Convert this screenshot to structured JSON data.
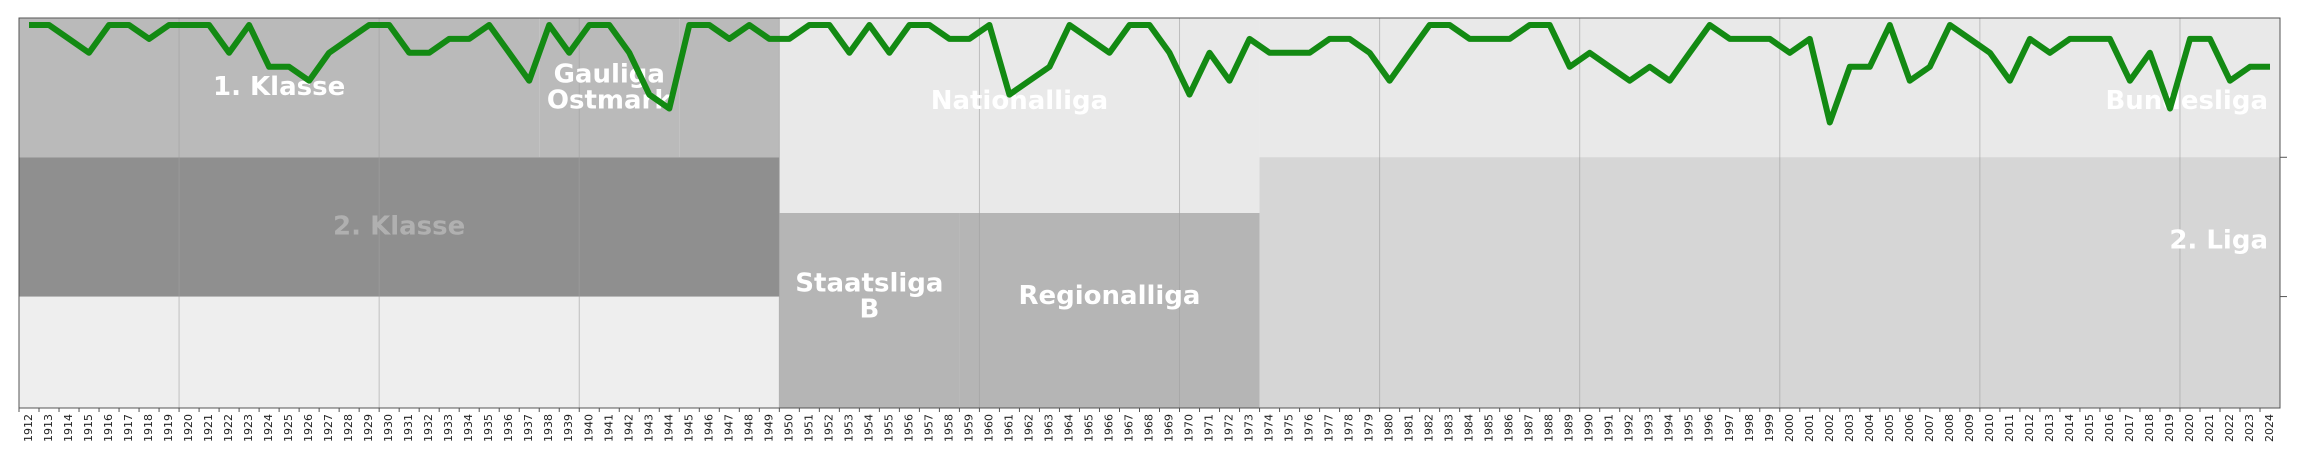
{
  "chart_data": {
    "type": "line",
    "categories": [
      "1912",
      "1913",
      "1914",
      "1915",
      "1916",
      "1917",
      "1918",
      "1919",
      "1920",
      "1921",
      "1922",
      "1923",
      "1924",
      "1925",
      "1926",
      "1927",
      "1928",
      "1929",
      "1930",
      "1931",
      "1932",
      "1933",
      "1934",
      "1935",
      "1936",
      "1937",
      "1938",
      "1939",
      "1940",
      "1941",
      "1942",
      "1943",
      "1944",
      "1945",
      "1946",
      "1947",
      "1948",
      "1949",
      "1950",
      "1951",
      "1952",
      "1953",
      "1954",
      "1955",
      "1956",
      "1957",
      "1958",
      "1959",
      "1960",
      "1961",
      "1962",
      "1963",
      "1964",
      "1965",
      "1966",
      "1967",
      "1968",
      "1969",
      "1970",
      "1971",
      "1972",
      "1973",
      "1974",
      "1975",
      "1976",
      "1977",
      "1978",
      "1979",
      "1980",
      "1981",
      "1982",
      "1983",
      "1984",
      "1985",
      "1986",
      "1987",
      "1988",
      "1989",
      "1990",
      "1991",
      "1992",
      "1993",
      "1994",
      "1995",
      "1996",
      "1997",
      "1998",
      "1999",
      "2000",
      "2001",
      "2002",
      "2003",
      "2004",
      "2005",
      "2006",
      "2007",
      "2008",
      "2009",
      "2010",
      "2011",
      "2012",
      "2013",
      "2014",
      "2015",
      "2016",
      "2017",
      "2018",
      "2019",
      "2020",
      "2021",
      "2022",
      "2023",
      "2024"
    ],
    "values": [
      1,
      1,
      2,
      3,
      1,
      1,
      2,
      1,
      1,
      1,
      3,
      1,
      4,
      4,
      5,
      3,
      2,
      1,
      1,
      3,
      3,
      2,
      2,
      1,
      3,
      5,
      1,
      3,
      1,
      1,
      3,
      6,
      7,
      1,
      1,
      2,
      1,
      2,
      2,
      1,
      1,
      3,
      1,
      3,
      1,
      1,
      2,
      2,
      1,
      6,
      5,
      4,
      1,
      2,
      3,
      1,
      1,
      3,
      6,
      3,
      5,
      2,
      3,
      3,
      3,
      2,
      2,
      3,
      5,
      3,
      1,
      1,
      2,
      2,
      2,
      1,
      1,
      4,
      3,
      4,
      5,
      4,
      5,
      3,
      1,
      2,
      2,
      2,
      3,
      2,
      8,
      4,
      4,
      1,
      5,
      4,
      1,
      2,
      3,
      5,
      2,
      3,
      2,
      2,
      2,
      5,
      3,
      7,
      2,
      2,
      5,
      4,
      4
    ],
    "color": "#138a13",
    "ylim": [
      28.5,
      0.5
    ],
    "yticks": [
      10.5,
      20.5
    ],
    "zones": [
      {
        "from": "1950",
        "to": "1973",
        "top": 0.5,
        "bottom": 28.5,
        "color": "#e9e9e9",
        "label": "Nationalliga"
      },
      {
        "from": "1974",
        "to": "2024",
        "top": 0.5,
        "bottom": 28.5,
        "color": "#e9e9e9",
        "label": "Bundesliga"
      },
      {
        "from": "1912",
        "to": "1949",
        "top": 20.5,
        "bottom": 28.5,
        "color": "#eeeeee"
      },
      {
        "from": "1912",
        "to": "1937",
        "top": 0.5,
        "bottom": 10.5,
        "color": "#bababa",
        "label": "1. Klasse"
      },
      {
        "from": "1938",
        "to": "1944",
        "top": 0.5,
        "bottom": 10.5,
        "color": "#bababa",
        "label": "Gauliga Ostmark"
      },
      {
        "from": "1945",
        "to": "1949",
        "top": 0.5,
        "bottom": 10.5,
        "color": "#bababa"
      },
      {
        "from": "1912",
        "to": "1949",
        "top": 10.5,
        "bottom": 20.5,
        "color": "#8f8f8f",
        "label": "2. Klasse"
      },
      {
        "from": "1950",
        "to": "1958",
        "top": 14.5,
        "bottom": 28.5,
        "color": "#b5b5b5",
        "label": "Staatsliga B"
      },
      {
        "from": "1959",
        "to": "1973",
        "top": 14.5,
        "bottom": 28.5,
        "color": "#b5b5b5",
        "label": "Regionalliga"
      },
      {
        "from": "1974",
        "to": "2024",
        "top": 10.5,
        "bottom": 28.5,
        "color": "#d6d6d6",
        "label": "2. Liga"
      }
    ]
  }
}
